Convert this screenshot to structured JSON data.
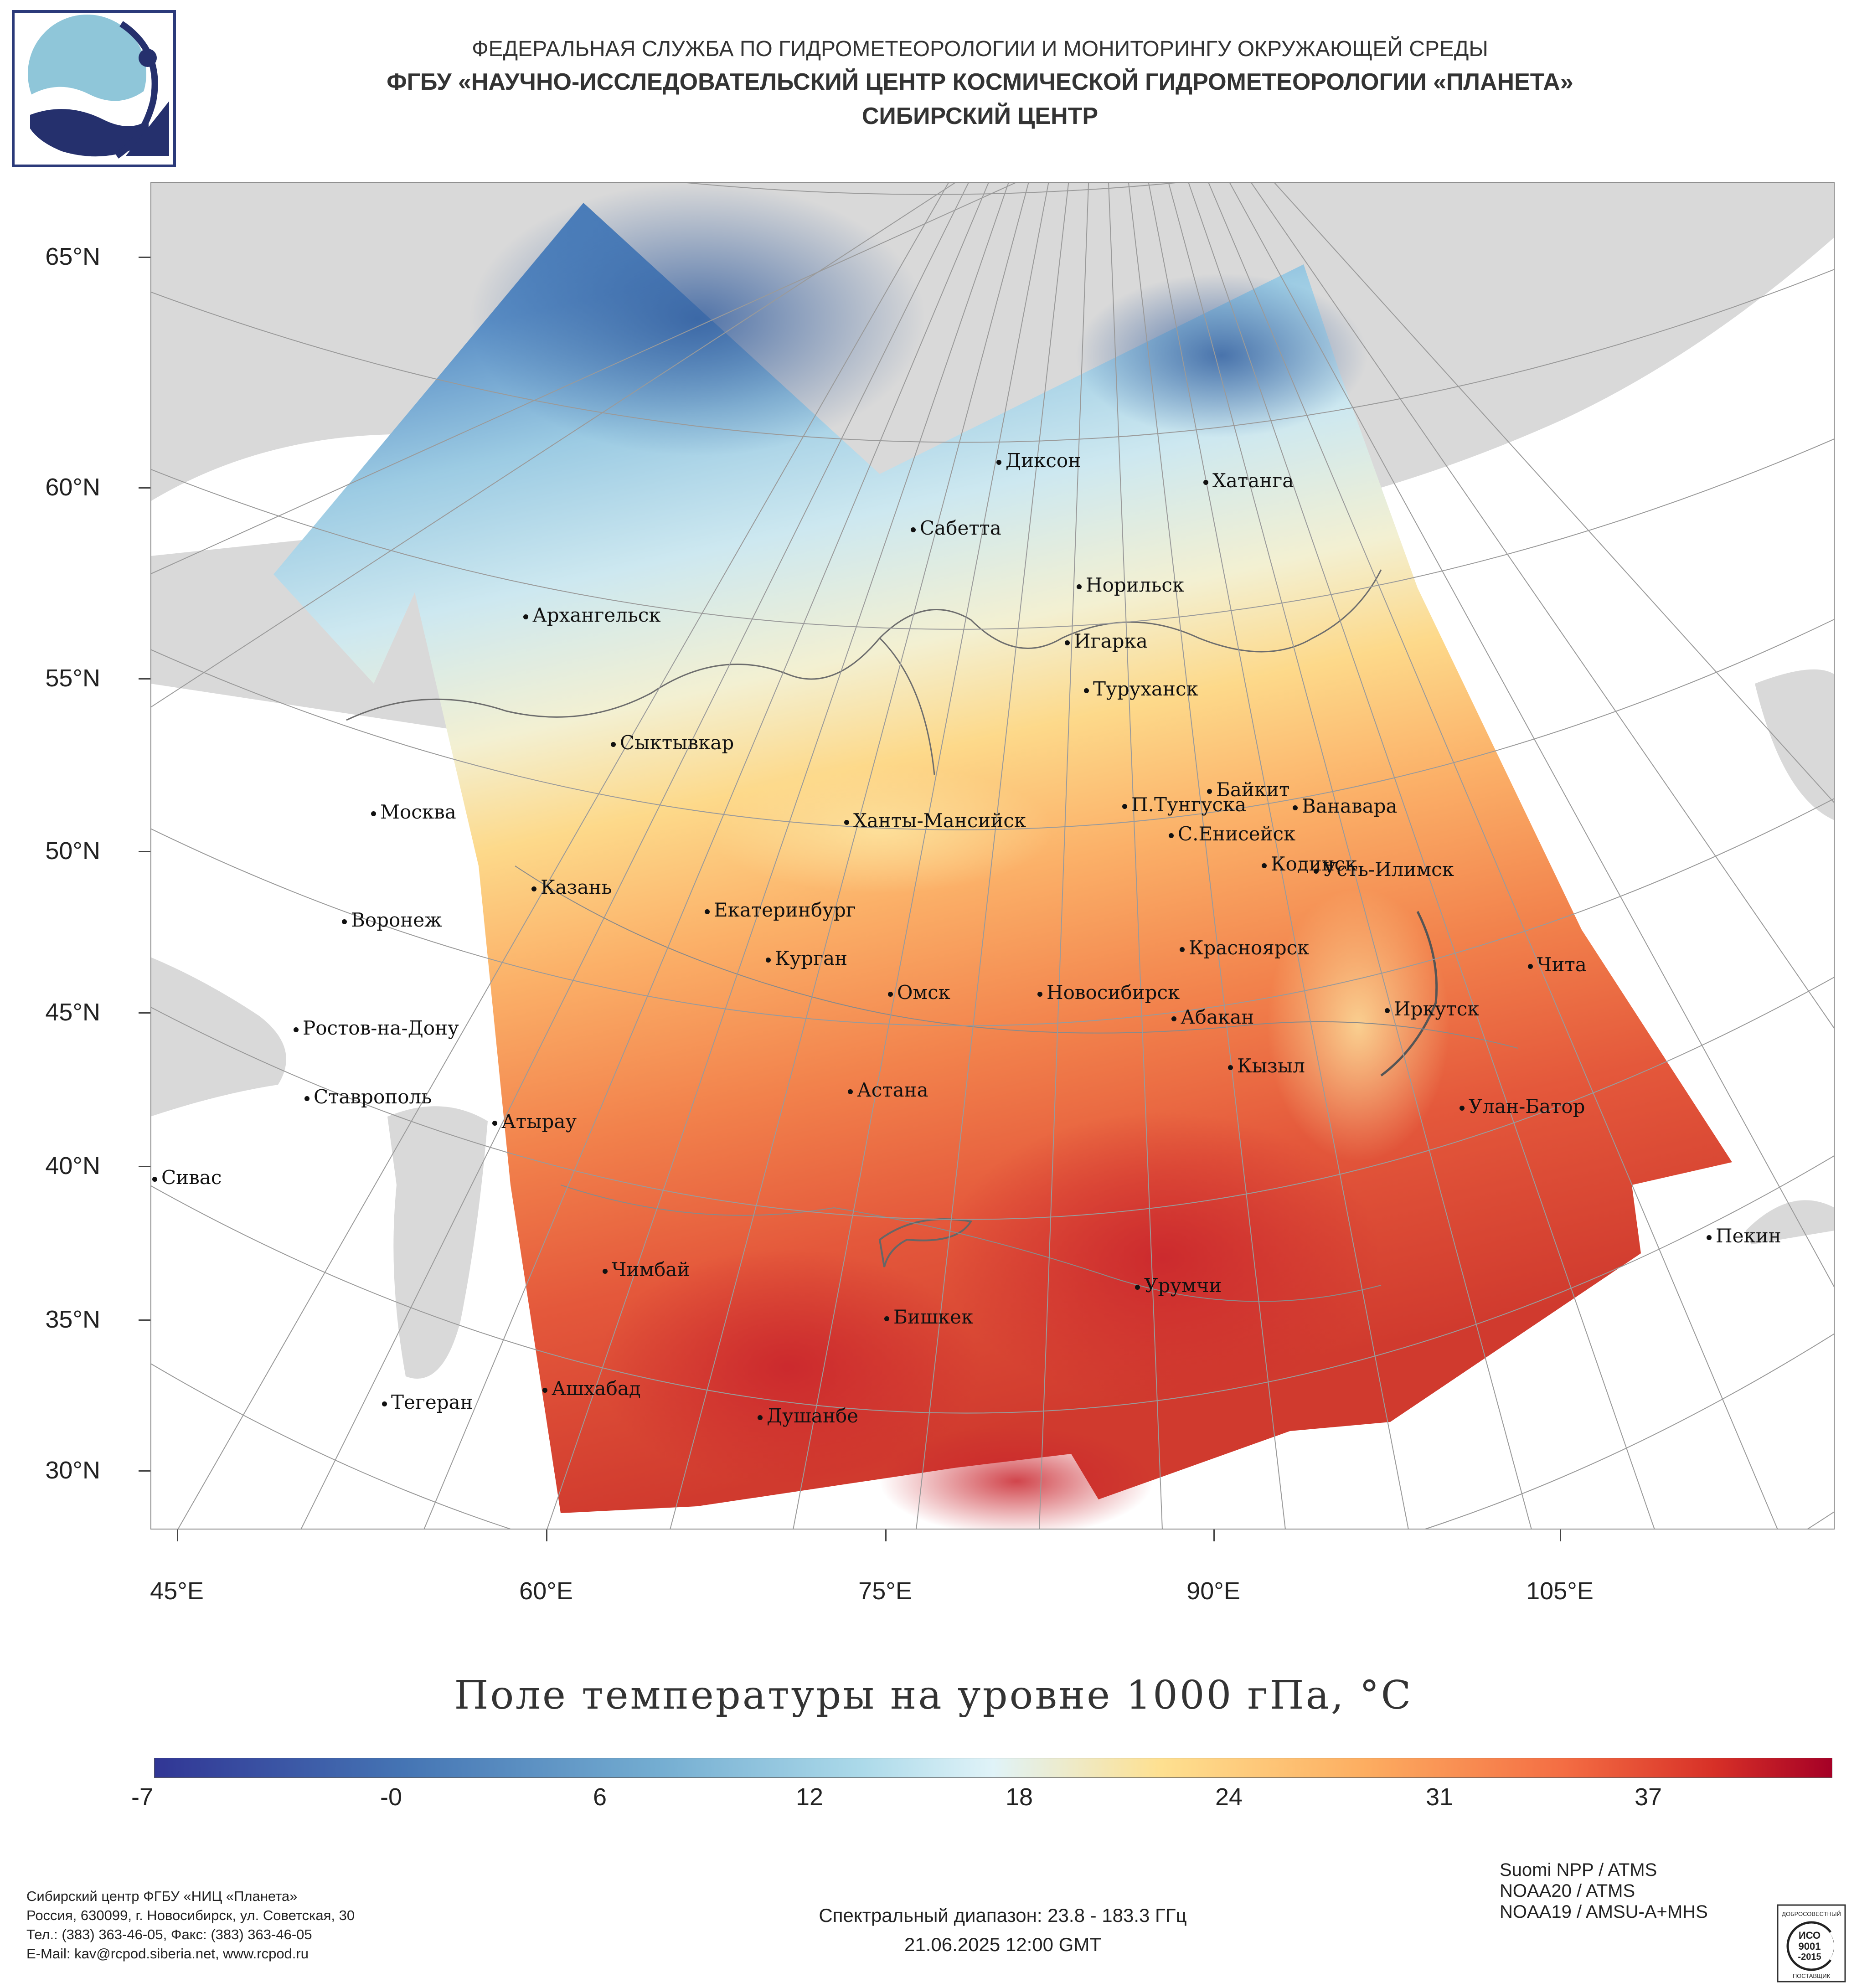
{
  "header": {
    "line1": "ФЕДЕРАЛЬНАЯ СЛУЖБА ПО ГИДРОМЕТЕОРОЛОГИИ И МОНИТОРИНГУ ОКРУЖАЮЩЕЙ СРЕДЫ",
    "line2": "ФГБУ «НАУЧНО-ИССЛЕДОВАТЕЛЬСКИЙ ЦЕНТР КОСМИЧЕСКОЙ ГИДРОМЕТЕОРОЛОГИИ «ПЛАНЕТА»",
    "line3": "СИБИРСКИЙ ЦЕНТР"
  },
  "map": {
    "latitudes": [
      "65°N",
      "60°N",
      "55°N",
      "50°N",
      "45°N",
      "40°N",
      "35°N",
      "30°N"
    ],
    "longitudes": [
      "45°E",
      "60°E",
      "75°E",
      "90°E",
      "105°E"
    ],
    "cities": [
      "Диксон",
      "Хатанга",
      "Сабетта",
      "Норильск",
      "Архангельск",
      "Игарка",
      "Туруханск",
      "Сыктывкар",
      "Байкит",
      "П.Тунгуска",
      "Ванавара",
      "Москва",
      "Ханты-Мансийск",
      "С.Енисейск",
      "Кодинск",
      "Усть-Илимск",
      "Казань",
      "Екатеринбург",
      "Воронеж",
      "Красноярск",
      "Курган",
      "Чита",
      "Омск",
      "Новосибирск",
      "Иркутск",
      "Абакан",
      "Ростов-на-Дону",
      "Кызыл",
      "Астана",
      "Ставрополь",
      "Улан-Батор",
      "Атырау",
      "Сивас",
      "Пекин",
      "Чимбай",
      "Урумчи",
      "Бишкек",
      "Ашхабад",
      "Тегеран",
      "Душанбе"
    ],
    "colors": {
      "land": "#d9d9d9",
      "water": "#ffffff",
      "border": "#8a8a8a"
    }
  },
  "title": "Поле температуры на уровне 1000 гПа, °C",
  "colorbar": {
    "labels": [
      "-7",
      "-0",
      "6",
      "12",
      "18",
      "24",
      "31",
      "37"
    ],
    "colors": [
      "#313695",
      "#4575b4",
      "#74add1",
      "#abd9e9",
      "#e0f3f8",
      "#fee090",
      "#fdae61",
      "#f46d43",
      "#d73027",
      "#a50026"
    ]
  },
  "footer": {
    "org": [
      "Сибирский центр ФГБУ «НИЦ «Планета»",
      "Россия, 630099, г. Новосибирск, ул. Советская, 30",
      "Тел.: (383) 363-46-05, Факс: (383) 363-46-05",
      "E-Mail: kav@rcpod.siberia.net, www.rcpod.ru"
    ],
    "spectral": "Спектральный диапазон: 23.8 - 183.3 ГГц",
    "datetime": "21.06.2025 12:00 GMT",
    "satellites": [
      "Suomi NPP / ATMS",
      "NOAA20 / ATMS",
      "NOAA19 / AMSU-A+MHS"
    ],
    "iso": [
      "ДОБРОСОВЕСТНЫЙ",
      "ИСО",
      "9001",
      "-2015",
      "ПОСТАВЩИК"
    ]
  }
}
